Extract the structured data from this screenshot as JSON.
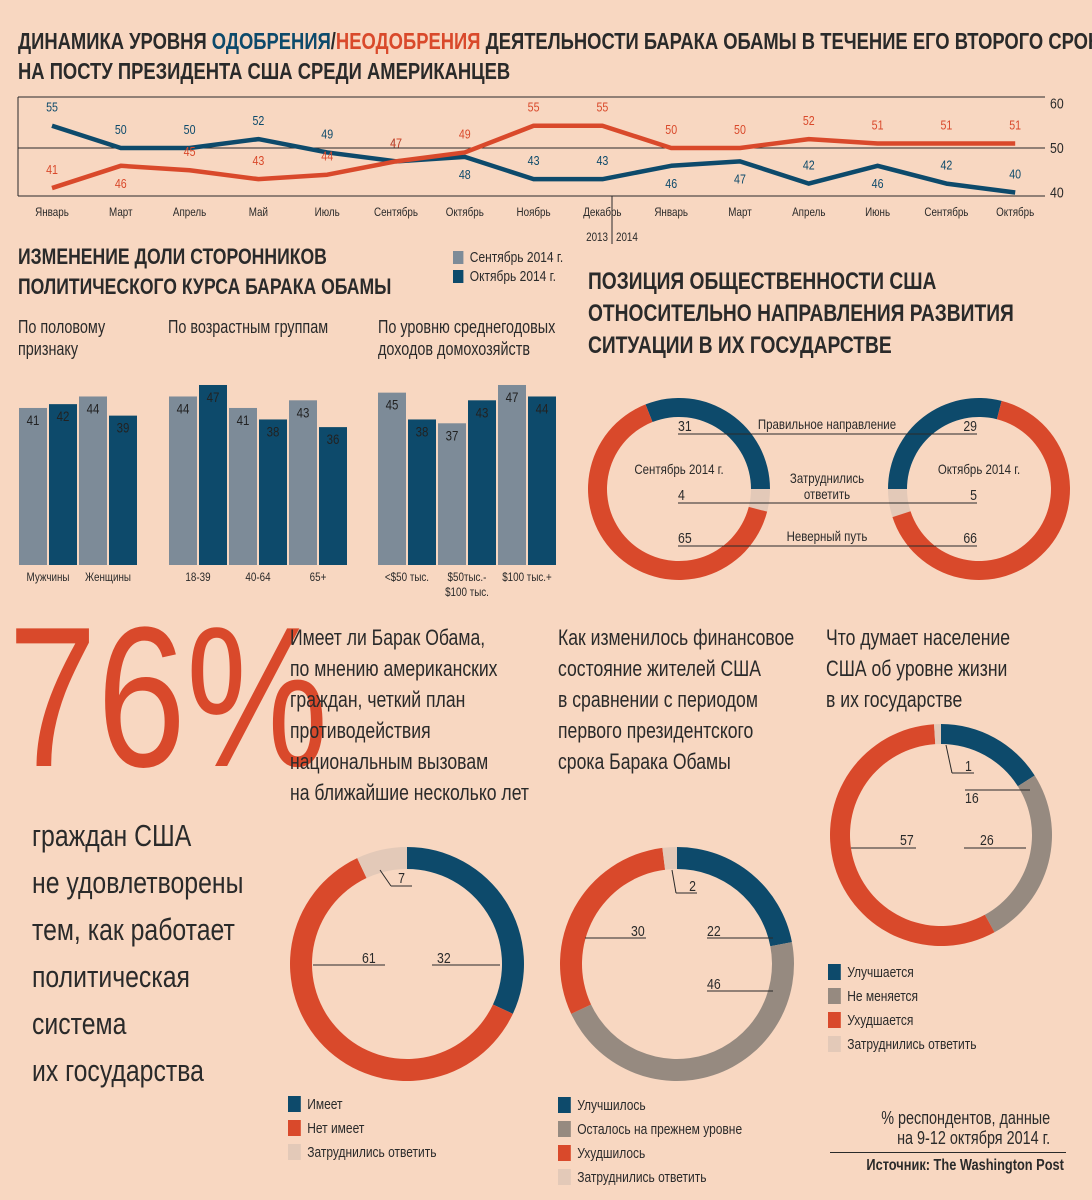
{
  "title": {
    "part1": "ДИНАМИКА УРОВНЯ ",
    "approve": "ОДОБРЕНИЯ",
    "slash": "/",
    "disapprove": "НЕОДОБРЕНИЯ",
    "part2": " ДЕЯТЕЛЬНОСТИ БАРАКА ОБАМЫ В ТЕЧЕНИЕ ЕГО ВТОРОГО СРОКА",
    "line2": "НА ПОСТУ ПРЕЗИДЕНТА США СРЕДИ АМЕРИКАНЦЕВ"
  },
  "colors": {
    "background": "#f8d7c1",
    "navy": "#0d4a6b",
    "red": "#d9492b",
    "gray": "#968a80",
    "light": "#e3c9b8",
    "bar_gray": "#7d8b98"
  },
  "bars_section": {
    "heading1": "ИЗМЕНЕНИЕ ДОЛИ СТОРОННИКОВ",
    "heading2": "ПОЛИТИЧЕСКОГО КУРСА БАРАКА ОБАМЫ",
    "legend": [
      "Сентябрь 2014 г.",
      "Октябрь 2014 г."
    ],
    "groups": [
      {
        "title": [
          "По половому",
          "признаку"
        ]
      },
      {
        "title": [
          "По возрастным группам"
        ]
      },
      {
        "title": [
          "По уровню среднегодовых",
          "доходов домохозяйств"
        ]
      }
    ]
  },
  "direction_section": {
    "heading": [
      "ПОЗИЦИЯ ОБЩЕСТВЕННОСТИ США",
      "ОТНОСИТЕЛЬНО НАПРАВЛЕНИЯ РАЗВИТИЯ",
      "СИТУАЦИИ В ИХ ГОСУДАРСТВЕ"
    ],
    "center_labels": [
      "Сентябрь 2014 г.",
      "Октябрь 2014 г."
    ],
    "row_labels": [
      "Правильное направление",
      "Затруднились",
      "ответить",
      "Неверный путь"
    ]
  },
  "big_stat": {
    "value": "76%",
    "text": [
      "граждан США",
      "не удовлетворены",
      "тем, как работает",
      "политическая",
      "система",
      "их государства"
    ]
  },
  "questions": [
    {
      "text": [
        "Имеет ли Барак Обама,",
        "по мнению американских",
        "граждан, четкий план",
        "противодействия",
        "национальным вызовам",
        "на ближайшие несколько лет"
      ],
      "legend": [
        "Имеет",
        "Нет имеет",
        "Затруднились ответить"
      ]
    },
    {
      "text": [
        "Как изменилось финансовое",
        "состояние жителей США",
        "в сравнении с периодом",
        "первого президентского",
        "срока Барака Обамы"
      ],
      "legend": [
        "Улучшилось",
        "Осталось на прежнем уровне",
        "Ухудшилось",
        "Затруднились ответить"
      ]
    },
    {
      "text": [
        "Что думает население",
        "США об уровне жизни",
        "в их государстве"
      ],
      "legend": [
        "Улучшается",
        "Не меняется",
        "Ухудшается",
        "Затруднились ответить"
      ]
    }
  ],
  "footer": {
    "note1": "% респондентов, данные",
    "note2": "на 9-12 октября 2014 г.",
    "source": "Источник: The Washington Post"
  },
  "chart_data": [
    {
      "type": "line",
      "categories": [
        "Январь",
        "Март",
        "Апрель",
        "Май",
        "Июль",
        "Сентябрь",
        "Октябрь",
        "Ноябрь",
        "Декабрь",
        "Январь",
        "Март",
        "Апрель",
        "Июнь",
        "Сентябрь",
        "Октябрь"
      ],
      "year_labels": [
        "2013",
        "2014"
      ],
      "ylim": [
        40,
        60
      ],
      "yticks": [
        "60",
        "50",
        "40"
      ],
      "series": [
        {
          "name": "ОДОБРЕНИЯ",
          "color": "#0d4a6b",
          "values": [
            55,
            50,
            50,
            52,
            49,
            47,
            48,
            43,
            43,
            46,
            47,
            42,
            46,
            42,
            40
          ]
        },
        {
          "name": "НЕОДОБРЕНИЯ",
          "color": "#d9492b",
          "values": [
            41,
            46,
            45,
            43,
            44,
            47,
            49,
            55,
            55,
            50,
            50,
            52,
            51,
            51,
            51
          ]
        }
      ]
    },
    {
      "type": "bar",
      "series_names": [
        "Сентябрь 2014 г.",
        "Октябрь 2014 г."
      ],
      "groups": [
        {
          "categories": [
            [
              "Мужчины"
            ],
            [
              "Женщины"
            ]
          ],
          "sep": [
            41,
            44
          ],
          "oct": [
            42,
            39
          ]
        },
        {
          "categories": [
            [
              "18-39"
            ],
            [
              "40-64"
            ],
            [
              "65+"
            ]
          ],
          "sep": [
            44,
            41,
            43
          ],
          "oct": [
            47,
            38,
            36
          ]
        },
        {
          "categories": [
            [
              "<$50 тыс."
            ],
            [
              "$50тыс.-",
              "$100 тыс."
            ],
            [
              "$100 тыс.+"
            ]
          ],
          "sep": [
            45,
            37,
            47
          ],
          "oct": [
            38,
            43,
            44
          ]
        }
      ]
    },
    {
      "type": "pie",
      "title": "Сентябрь 2014 г.",
      "labels": [
        "Правильное направление",
        "Затруднились ответить",
        "Неверный путь"
      ],
      "values": [
        31,
        4,
        65
      ]
    },
    {
      "type": "pie",
      "title": "Октябрь 2014 г.",
      "labels": [
        "Правильное направление",
        "Затруднились ответить",
        "Неверный путь"
      ],
      "values": [
        29,
        5,
        66
      ]
    },
    {
      "type": "pie",
      "labels": [
        "Имеет",
        "Нет имеет",
        "Затруднились ответить"
      ],
      "values": [
        32,
        61,
        7
      ]
    },
    {
      "type": "pie",
      "labels": [
        "Улучшилось",
        "Осталось на прежнем уровне",
        "Ухудшилось",
        "Затруднились ответить"
      ],
      "values": [
        22,
        46,
        30,
        2
      ]
    },
    {
      "type": "pie",
      "labels": [
        "Улучшается",
        "Не меняется",
        "Ухудшается",
        "Затруднились ответить"
      ],
      "values": [
        16,
        26,
        57,
        1
      ]
    }
  ]
}
